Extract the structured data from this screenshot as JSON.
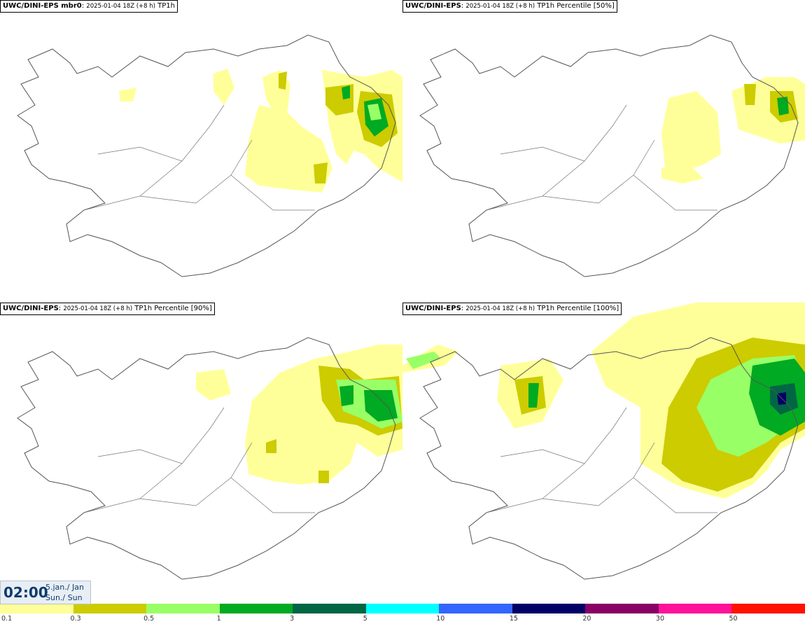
{
  "panels": [
    {
      "model": "UWC/DINI-EPS mbr0",
      "sep": ":",
      "run": "2025-01-04 18Z (+8 h)",
      "param": "TP1h"
    },
    {
      "model": "UWC/DINI-EPS",
      "sep": ":",
      "run": "2025-01-04 18Z (+8 h)",
      "param": "TP1h Percentile [50%]"
    },
    {
      "model": "UWC/DINI-EPS",
      "sep": ":",
      "run": "2025-01-04 18Z (+8 h)",
      "param": "TP1h Percentile [90%]"
    },
    {
      "model": "UWC/DINI-EPS",
      "sep": ":",
      "run": "2025-01-04 18Z (+8 h)",
      "param": "TP1h Percentile [100%]"
    }
  ],
  "time": {
    "clock": "02:00",
    "date_line": "5.jan./ Jan",
    "day_line": "Sun./ Sun"
  },
  "legend": {
    "colors": [
      "#ffff99",
      "#cccc00",
      "#99ff66",
      "#00aa22",
      "#006644",
      "#00ffff",
      "#3366ff",
      "#000066",
      "#880066",
      "#ff1199",
      "#ff1100"
    ],
    "labels": [
      "0.1",
      "0.3",
      "0.5",
      "1",
      "3",
      "5",
      "10",
      "15",
      "20",
      "30",
      "50"
    ]
  },
  "palette": {
    "light_yellow": "#ffff99",
    "olive": "#cccc00",
    "light_green": "#99ff66",
    "green": "#00aa22",
    "dark_green": "#006644",
    "navy": "#000066",
    "coast": "#555555"
  }
}
